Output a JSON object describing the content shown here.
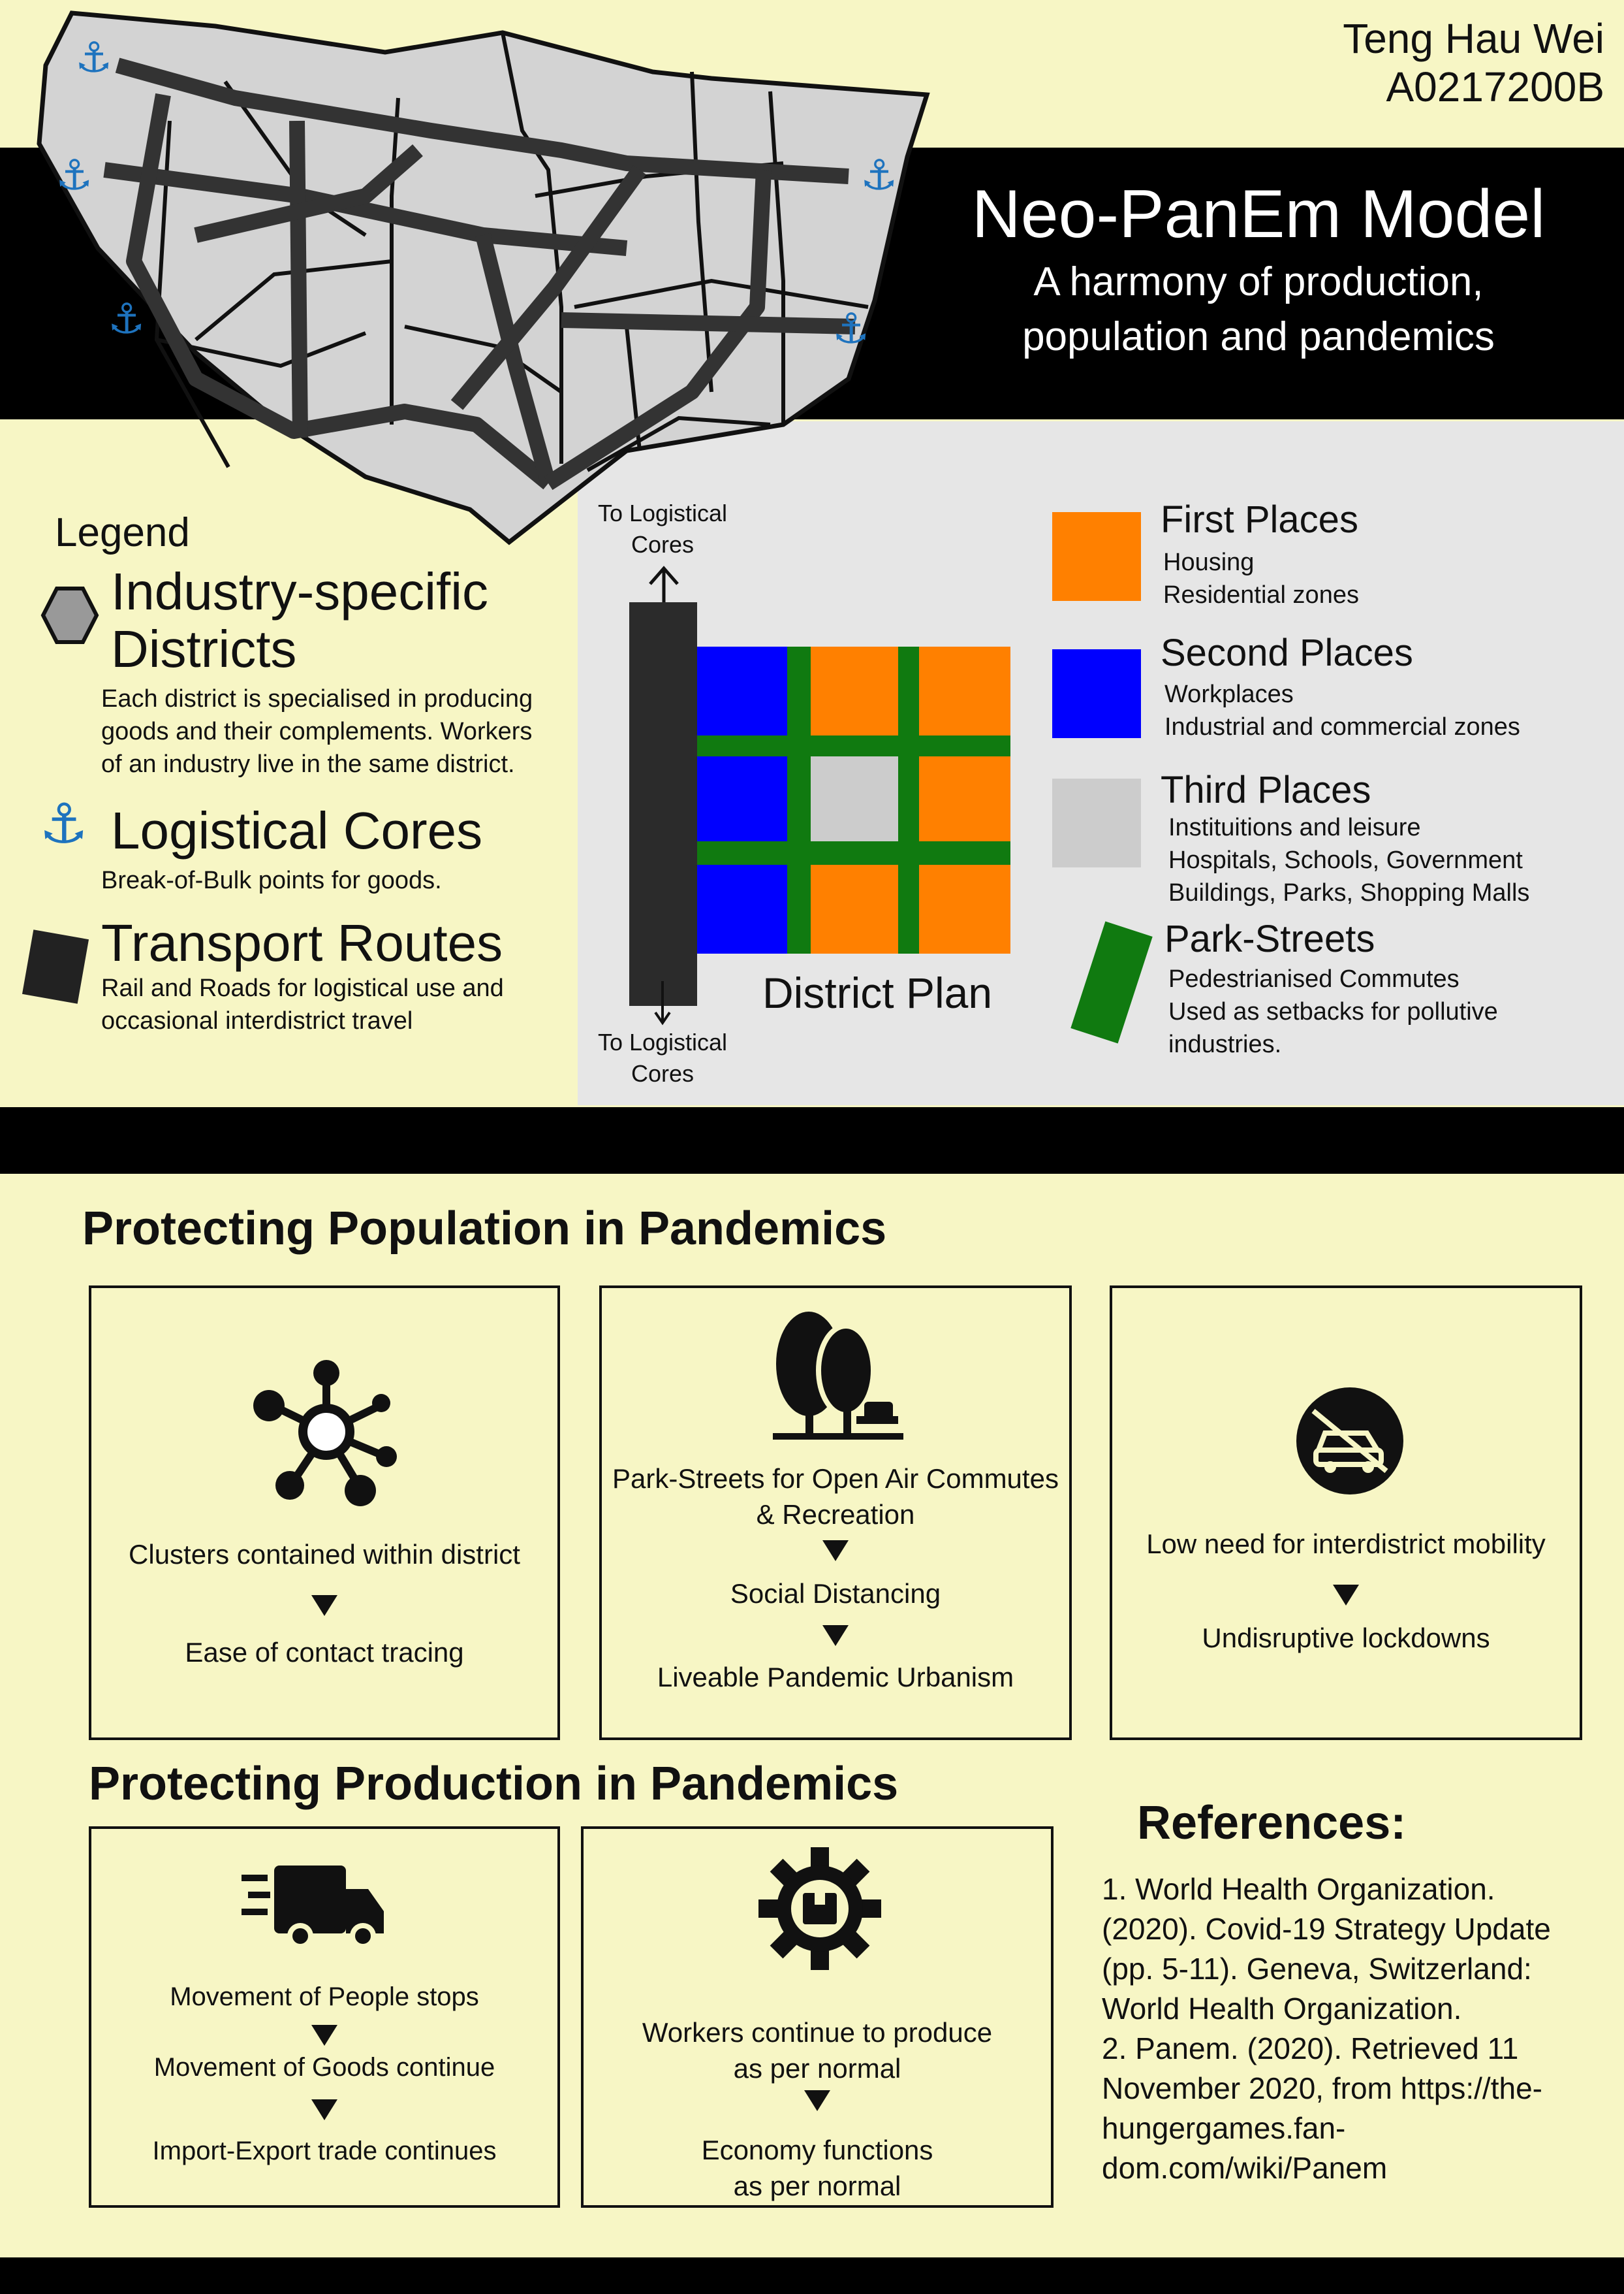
{
  "author": {
    "name": "Teng Hau Wei",
    "id": "A0217200B"
  },
  "title": {
    "main": "Neo-PanEm Model",
    "sub_line1": "A harmony of production,",
    "sub_line2": "population and pandemics"
  },
  "legend": {
    "heading": "Legend",
    "items": [
      {
        "title_line1": "Industry-specific",
        "title_line2": "Districts",
        "desc": [
          "Each district is specialised in producing",
          "goods and their complements. Workers",
          "of an industry live in the same district."
        ],
        "icon": "hexagon-icon"
      },
      {
        "title_line1": "Logistical Cores",
        "desc": [
          "Break-of-Bulk points for goods."
        ],
        "icon": "anchor-icon"
      },
      {
        "title_line1": "Transport Routes",
        "desc": [
          "Rail and Roads for logistical use and",
          "occasional interdistrict travel"
        ],
        "icon": "transport-square-icon"
      }
    ]
  },
  "district_plan": {
    "label": "District Plan",
    "top_label_line1": "To Logistical",
    "top_label_line2": "Cores",
    "bottom_label_line1": "To Logistical",
    "bottom_label_line2": "Cores"
  },
  "places": [
    {
      "title": "First Places",
      "lines": [
        "Housing",
        "Residential zones"
      ],
      "color": "#ff8000"
    },
    {
      "title": "Second Places",
      "lines": [
        "Workplaces",
        "Industrial and commercial zones"
      ],
      "color": "#0000ff"
    },
    {
      "title": "Third Places",
      "lines": [
        "Instituitions and leisure",
        "Hospitals, Schools, Government",
        "Buildings, Parks, Shopping Malls"
      ],
      "color": "#cccccc"
    },
    {
      "title": "Park-Streets",
      "lines": [
        "Pedestrianised Commutes",
        "Used as setbacks for pollutive",
        "industries."
      ],
      "color": "#107a10"
    }
  ],
  "population": {
    "heading": "Protecting Population in Pandemics",
    "boxes": [
      {
        "icon": "network-icon",
        "lines": [
          "Clusters contained within district",
          "Ease of contact tracing"
        ]
      },
      {
        "icon": "park-trees-icon",
        "lines": [
          "Park-Streets for Open Air Commutes",
          "& Recreation",
          "Social Distancing",
          "Liveable Pandemic Urbanism"
        ]
      },
      {
        "icon": "no-car-icon",
        "lines": [
          "Low need for interdistrict mobility",
          "Undisruptive lockdowns"
        ]
      }
    ]
  },
  "production": {
    "heading": "Protecting Production in Pandemics",
    "boxes": [
      {
        "icon": "delivery-truck-icon",
        "lines": [
          "Movement of People stops",
          "Movement of Goods continue",
          "Import-Export trade continues"
        ]
      },
      {
        "icon": "gear-box-icon",
        "lines": [
          "Workers continue to produce",
          "as per normal",
          "Economy functions",
          "as per normal"
        ]
      }
    ]
  },
  "references": {
    "heading": "References:",
    "lines": [
      "1. World Health Organization.",
      "(2020). Covid-19 Strategy Update",
      "(pp. 5-11). Geneva, Switzerland:",
      "World Health Organization.",
      "2. Panem. (2020). Retrieved 11",
      "November 2020, from https://the-",
      "hungergames.fan-",
      "dom.com/wiki/Panem"
    ]
  },
  "colors": {
    "background": "#f7f6c5",
    "orange": "#ff8000",
    "blue": "#0000ff",
    "gray": "#cccccc",
    "green": "#107a10",
    "panel": "#e6e6e6"
  }
}
